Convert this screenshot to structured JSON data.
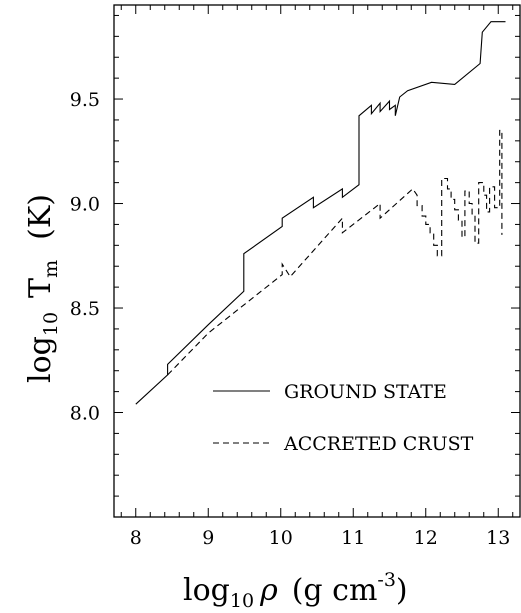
{
  "chart_data": {
    "type": "line",
    "xlabel_main": "log",
    "xlabel_sub": "10",
    "xlabel_var": "ρ",
    "xlabel_units": "(g   cm",
    "xlabel_exp": "-3",
    "xlabel_close": ")",
    "ylabel_main": "log",
    "ylabel_sub": "10",
    "ylabel_var": "T",
    "ylabel_var_sub": "m",
    "ylabel_units": "(K)",
    "xlim": [
      7.7,
      13.3
    ],
    "ylim": [
      7.5,
      9.95
    ],
    "x_ticks": [
      "8",
      "9",
      "10",
      "11",
      "12",
      "13"
    ],
    "y_ticks": [
      "8.0",
      "8.5",
      "9.0",
      "9.5"
    ],
    "legend_position": "lower-right",
    "series": [
      {
        "name": "GROUND STATE",
        "style": "solid",
        "points": [
          [
            8.0,
            8.04
          ],
          [
            8.44,
            8.18
          ],
          [
            8.44,
            8.23
          ],
          [
            9.0,
            8.42
          ],
          [
            9.49,
            8.58
          ],
          [
            9.49,
            8.76
          ],
          [
            10.02,
            8.89
          ],
          [
            10.02,
            8.93
          ],
          [
            10.45,
            9.03
          ],
          [
            10.45,
            8.98
          ],
          [
            10.85,
            9.07
          ],
          [
            10.85,
            9.03
          ],
          [
            11.08,
            9.09
          ],
          [
            11.08,
            9.42
          ],
          [
            11.25,
            9.47
          ],
          [
            11.25,
            9.43
          ],
          [
            11.37,
            9.48
          ],
          [
            11.37,
            9.44
          ],
          [
            11.5,
            9.49
          ],
          [
            11.5,
            9.45
          ],
          [
            11.58,
            9.47
          ],
          [
            11.58,
            9.42
          ],
          [
            11.64,
            9.51
          ],
          [
            11.75,
            9.54
          ],
          [
            12.08,
            9.58
          ],
          [
            12.4,
            9.57
          ],
          [
            12.75,
            9.67
          ],
          [
            12.78,
            9.82
          ],
          [
            12.9,
            9.87
          ],
          [
            13.1,
            9.87
          ]
        ]
      },
      {
        "name": "ACCRETED CRUST",
        "style": "dashed",
        "points": [
          [
            8.44,
            8.18
          ],
          [
            9.0,
            8.38
          ],
          [
            10.02,
            8.66
          ],
          [
            10.02,
            8.71
          ],
          [
            10.13,
            8.65
          ],
          [
            10.85,
            8.93
          ],
          [
            10.85,
            8.86
          ],
          [
            11.37,
            9.0
          ],
          [
            11.37,
            8.93
          ],
          [
            11.82,
            9.07
          ],
          [
            11.88,
            9.04
          ],
          [
            11.88,
            8.99
          ],
          [
            11.95,
            8.99
          ],
          [
            11.95,
            8.94
          ],
          [
            12.0,
            8.94
          ],
          [
            12.0,
            8.9
          ],
          [
            12.06,
            8.9
          ],
          [
            12.06,
            8.86
          ],
          [
            12.11,
            8.86
          ],
          [
            12.11,
            8.8
          ],
          [
            12.16,
            8.8
          ],
          [
            12.16,
            8.75
          ],
          [
            12.22,
            8.75
          ],
          [
            12.22,
            9.12
          ],
          [
            12.3,
            9.12
          ],
          [
            12.3,
            9.07
          ],
          [
            12.35,
            9.07
          ],
          [
            12.35,
            9.02
          ],
          [
            12.4,
            9.02
          ],
          [
            12.4,
            8.97
          ],
          [
            12.45,
            8.97
          ],
          [
            12.45,
            8.92
          ],
          [
            12.5,
            8.92
          ],
          [
            12.5,
            8.84
          ],
          [
            12.54,
            8.84
          ],
          [
            12.54,
            9.06
          ],
          [
            12.6,
            9.06
          ],
          [
            12.6,
            9.0
          ],
          [
            12.64,
            9.0
          ],
          [
            12.64,
            8.95
          ],
          [
            12.68,
            8.95
          ],
          [
            12.68,
            8.81
          ],
          [
            12.73,
            8.81
          ],
          [
            12.73,
            9.1
          ],
          [
            12.8,
            9.1
          ],
          [
            12.8,
            9.04
          ],
          [
            12.84,
            9.04
          ],
          [
            12.84,
            8.96
          ],
          [
            12.88,
            8.96
          ],
          [
            12.88,
            9.08
          ],
          [
            12.95,
            9.08
          ],
          [
            12.95,
            8.98
          ],
          [
            13.02,
            8.98
          ],
          [
            13.02,
            9.35
          ],
          [
            13.05,
            9.35
          ],
          [
            13.05,
            8.85
          ]
        ]
      }
    ]
  }
}
